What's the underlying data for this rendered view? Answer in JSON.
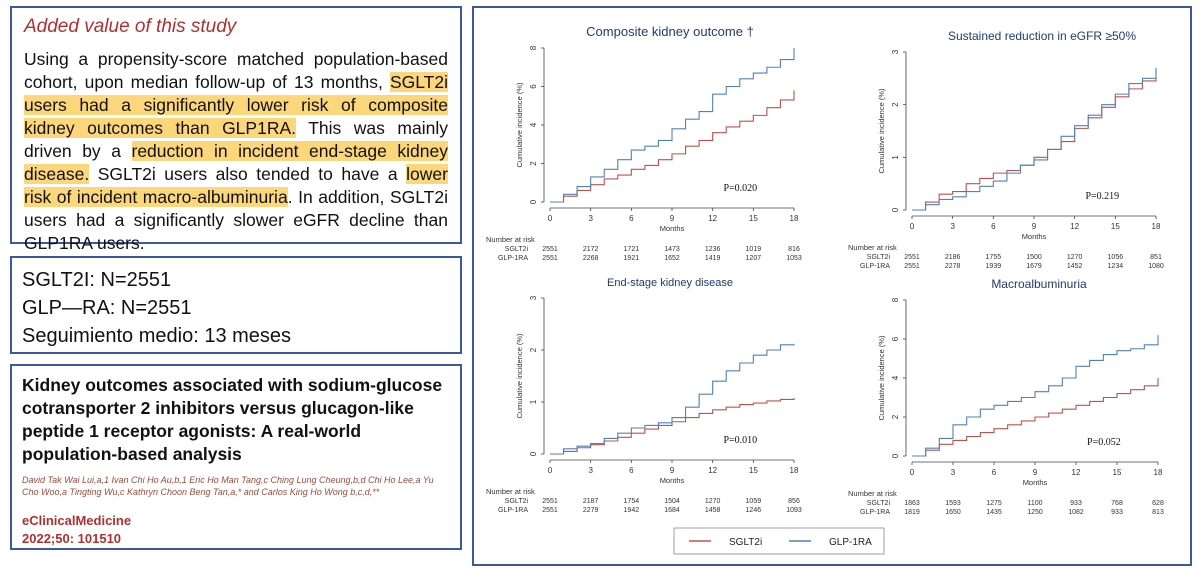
{
  "added": {
    "title": "Added value of this study",
    "segments": [
      {
        "text": "Using a propensity-score matched population-based cohort, upon median follow-up of 13 months, ",
        "hl": false
      },
      {
        "text": "SGLT2i users had a significantly lower risk of composite kidney outcomes than GLP1RA.",
        "hl": true
      },
      {
        "text": " This was mainly driven by a ",
        "hl": false
      },
      {
        "text": "reduction in incident end-stage kidney disease.",
        "hl": true
      },
      {
        "text": " SGLT2i users also tended to have a ",
        "hl": false
      },
      {
        "text": "lower risk of incident macro-albuminuria",
        "hl": true
      },
      {
        "text": ". In addition, SGLT2i users had a significantly slower eGFR decline than GLP1RA users.",
        "hl": false
      }
    ]
  },
  "counts": {
    "line1": "SGLT2I: N=2551",
    "line2": "GLP—RA: N=2551",
    "line3": "Seguimiento medio: 13 meses"
  },
  "paper": {
    "title": "Kidney outcomes associated with sodium-glucose cotransporter 2 inhibitors versus glucagon-like peptide 1 receptor agonists: A real-world population-based analysis",
    "authors": "David Tak Wai Lui,a,1 Ivan Chi Ho Au,b,1 Eric Ho Man Tang,c Ching Lung Cheung,b,d Chi Ho Lee,a Yu Cho Woo,a Tingting Wu,c Kathryn Choon Beng Tan,a,* and Carlos King Ho Wong b,c,d,**",
    "journal": "eClinicalMedicine",
    "citation": "2022;50: 101510"
  },
  "legend": [
    {
      "name": "SGLT2i",
      "color": "#c0504d"
    },
    {
      "name": "GLP-1RA",
      "color": "#4f81bd"
    }
  ],
  "chart_data": [
    {
      "type": "line",
      "title": "Composite kidney outcome †",
      "xlabel": "Months",
      "ylabel": "Cumulative incidence (%)",
      "xlim": [
        0,
        18
      ],
      "ylim": [
        0,
        8
      ],
      "xticks": [
        0,
        3,
        6,
        9,
        12,
        15,
        18
      ],
      "yticks": [
        0,
        2,
        4,
        6,
        8
      ],
      "pvalue": "P=0.020",
      "series": [
        {
          "name": "SGLT2i",
          "x": [
            0,
            1,
            2,
            3,
            4,
            5,
            6,
            7,
            8,
            9,
            10,
            11,
            12,
            13,
            14,
            15,
            16,
            17,
            18
          ],
          "y": [
            0,
            0.3,
            0.6,
            0.9,
            1.2,
            1.4,
            1.7,
            1.9,
            2.2,
            2.5,
            2.9,
            3.2,
            3.6,
            3.9,
            4.2,
            4.5,
            4.9,
            5.3,
            5.8
          ]
        },
        {
          "name": "GLP-1RA",
          "x": [
            0,
            1,
            2,
            3,
            4,
            5,
            6,
            7,
            8,
            9,
            10,
            11,
            12,
            13,
            14,
            15,
            16,
            17,
            18
          ],
          "y": [
            0,
            0.4,
            0.8,
            1.3,
            1.7,
            2.2,
            2.7,
            2.9,
            3.2,
            3.8,
            4.3,
            4.7,
            5.6,
            6.0,
            6.4,
            6.7,
            7.0,
            7.4,
            8.0
          ]
        }
      ],
      "risk_table": {
        "header": "Number at risk",
        "rows": [
          {
            "label": "SGLT2i",
            "values": [
              "2551",
              "2172",
              "1721",
              "1473",
              "1236",
              "1019",
              "816"
            ]
          },
          {
            "label": "GLP-1RA",
            "values": [
              "2551",
              "2268",
              "1921",
              "1652",
              "1419",
              "1207",
              "1053"
            ]
          }
        ]
      }
    },
    {
      "type": "line",
      "title": "Sustained reduction in eGFR ≥50%",
      "xlabel": "Months",
      "ylabel": "Cumulative incidence (%)",
      "xlim": [
        0,
        18
      ],
      "ylim": [
        0,
        3
      ],
      "xticks": [
        0,
        3,
        6,
        9,
        12,
        15,
        18
      ],
      "yticks": [
        0,
        1,
        2,
        3
      ],
      "pvalue": "P=0.219",
      "series": [
        {
          "name": "SGLT2i",
          "x": [
            0,
            1,
            2,
            3,
            4,
            5,
            6,
            7,
            8,
            9,
            10,
            11,
            12,
            13,
            14,
            15,
            16,
            17,
            18
          ],
          "y": [
            0,
            0.15,
            0.3,
            0.35,
            0.5,
            0.6,
            0.7,
            0.75,
            0.85,
            1.0,
            1.15,
            1.3,
            1.55,
            1.75,
            1.95,
            2.15,
            2.3,
            2.45,
            2.6
          ]
        },
        {
          "name": "GLP-1RA",
          "x": [
            0,
            1,
            2,
            3,
            4,
            5,
            6,
            7,
            8,
            9,
            10,
            11,
            12,
            13,
            14,
            15,
            16,
            17,
            18
          ],
          "y": [
            0,
            0.1,
            0.2,
            0.25,
            0.35,
            0.45,
            0.55,
            0.7,
            0.85,
            0.95,
            1.15,
            1.4,
            1.6,
            1.8,
            2.0,
            2.2,
            2.4,
            2.5,
            2.7
          ]
        }
      ],
      "risk_table": {
        "header": "Number at risk",
        "rows": [
          {
            "label": "SGLT2i",
            "values": [
              "2551",
              "2186",
              "1755",
              "1500",
              "1270",
              "1056",
              "851"
            ]
          },
          {
            "label": "GLP-1RA",
            "values": [
              "2551",
              "2278",
              "1939",
              "1679",
              "1452",
              "1234",
              "1080"
            ]
          }
        ]
      }
    },
    {
      "type": "line",
      "title": "End-stage kidney disease",
      "xlabel": "Months",
      "ylabel": "Cumulative incidence (%)",
      "xlim": [
        0,
        18
      ],
      "ylim": [
        0,
        3
      ],
      "xticks": [
        0,
        3,
        6,
        9,
        12,
        15,
        18
      ],
      "yticks": [
        0,
        1,
        2,
        3
      ],
      "pvalue": "P=0.010",
      "series": [
        {
          "name": "SGLT2i",
          "x": [
            0,
            1,
            2,
            3,
            4,
            5,
            6,
            7,
            8,
            9,
            10,
            11,
            12,
            13,
            14,
            15,
            16,
            17,
            18
          ],
          "y": [
            0,
            0.05,
            0.12,
            0.18,
            0.25,
            0.32,
            0.4,
            0.48,
            0.55,
            0.62,
            0.7,
            0.78,
            0.85,
            0.9,
            0.95,
            0.98,
            1.02,
            1.05,
            1.08
          ]
        },
        {
          "name": "GLP-1RA",
          "x": [
            0,
            1,
            2,
            3,
            4,
            5,
            6,
            7,
            8,
            9,
            10,
            11,
            12,
            13,
            14,
            15,
            16,
            17,
            18
          ],
          "y": [
            0,
            0.1,
            0.15,
            0.2,
            0.3,
            0.4,
            0.5,
            0.55,
            0.6,
            0.7,
            0.9,
            1.15,
            1.4,
            1.6,
            1.75,
            1.9,
            2.0,
            2.1,
            2.12
          ]
        }
      ],
      "risk_table": {
        "header": "Number at risk",
        "rows": [
          {
            "label": "SGLT2i",
            "values": [
              "2551",
              "2187",
              "1754",
              "1504",
              "1270",
              "1059",
              "856"
            ]
          },
          {
            "label": "GLP-1RA",
            "values": [
              "2551",
              "2279",
              "1942",
              "1684",
              "1458",
              "1246",
              "1093"
            ]
          }
        ]
      }
    },
    {
      "type": "line",
      "title": "Macroalbuminuria",
      "xlabel": "Months",
      "ylabel": "Cumulative incidence (%)",
      "xlim": [
        0,
        18
      ],
      "ylim": [
        0,
        8
      ],
      "xticks": [
        0,
        3,
        6,
        9,
        12,
        15,
        18
      ],
      "yticks": [
        0,
        2,
        4,
        6,
        8
      ],
      "pvalue": "P=0.052",
      "series": [
        {
          "name": "SGLT2i",
          "x": [
            0,
            1,
            2,
            3,
            4,
            5,
            6,
            7,
            8,
            9,
            10,
            11,
            12,
            13,
            14,
            15,
            16,
            17,
            18
          ],
          "y": [
            0,
            0.3,
            0.6,
            0.8,
            1.0,
            1.2,
            1.4,
            1.6,
            1.8,
            2.0,
            2.2,
            2.4,
            2.6,
            2.8,
            3.0,
            3.2,
            3.4,
            3.6,
            4.0
          ]
        },
        {
          "name": "GLP-1RA",
          "x": [
            0,
            1,
            2,
            3,
            4,
            5,
            6,
            7,
            8,
            9,
            10,
            11,
            12,
            13,
            14,
            15,
            16,
            17,
            18
          ],
          "y": [
            0,
            0.4,
            0.9,
            1.6,
            2.0,
            2.4,
            2.6,
            2.8,
            3.0,
            3.3,
            3.6,
            4.0,
            4.6,
            4.9,
            5.2,
            5.4,
            5.5,
            5.7,
            6.2
          ]
        }
      ],
      "risk_table": {
        "header": "Number at risk",
        "rows": [
          {
            "label": "SGLT2i",
            "values": [
              "1863",
              "1593",
              "1275",
              "1100",
              "933",
              "768",
              "628"
            ]
          },
          {
            "label": "GLP-1RA",
            "values": [
              "1819",
              "1650",
              "1435",
              "1250",
              "1082",
              "933",
              "813"
            ]
          }
        ]
      }
    }
  ]
}
